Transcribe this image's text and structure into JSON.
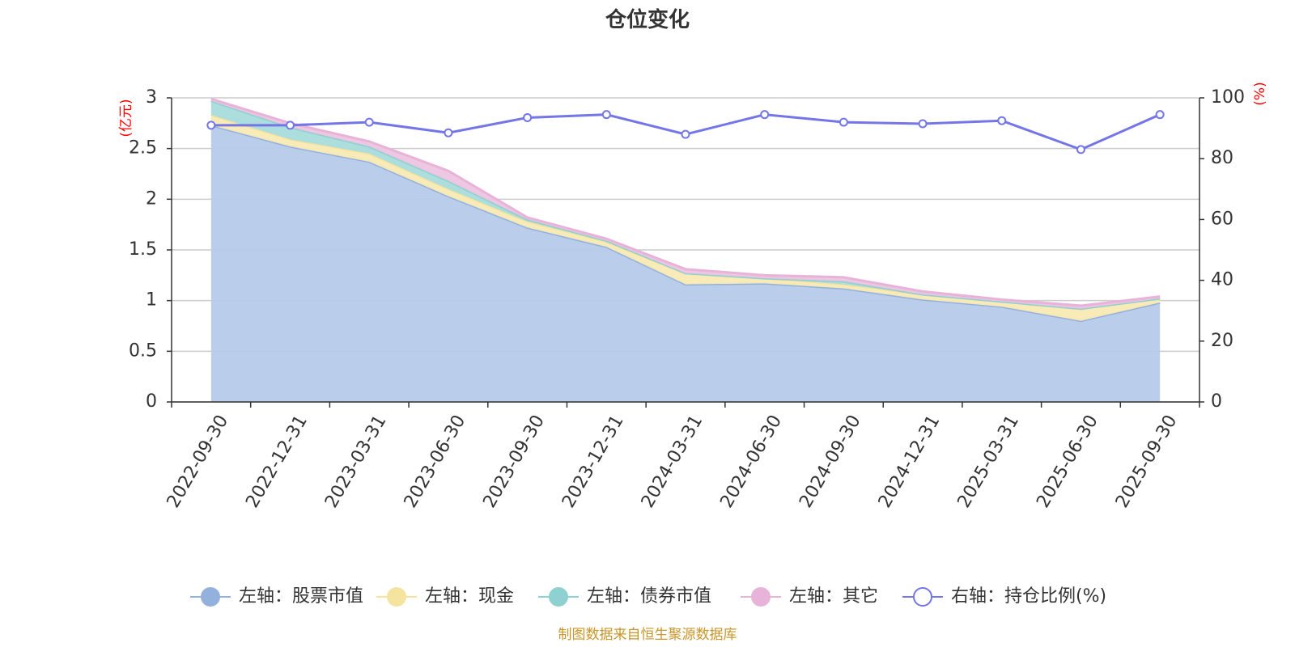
{
  "chart_data": {
    "type": "area",
    "title": "仓位变化",
    "categories": [
      "2022-09-30",
      "2022-12-31",
      "2023-03-31",
      "2023-06-30",
      "2023-09-30",
      "2023-12-31",
      "2024-03-31",
      "2024-06-30",
      "2024-09-30",
      "2024-12-31",
      "2025-03-31",
      "2025-06-30",
      "2025-09-30"
    ],
    "left_axis": {
      "unit": "(亿元)",
      "ylim": [
        0,
        3
      ],
      "ticks": [
        "0",
        "0.5",
        "1",
        "1.5",
        "2",
        "2.5",
        "3"
      ]
    },
    "right_axis": {
      "unit": "(%)",
      "ylim": [
        0,
        100
      ],
      "ticks": [
        "0",
        "20",
        "40",
        "60",
        "80",
        "100"
      ]
    },
    "stacked_series": [
      {
        "name": "左轴：股票市值",
        "color": "#94b1de",
        "fill": "#b6cbea",
        "values": [
          2.73,
          2.52,
          2.37,
          2.03,
          1.72,
          1.53,
          1.16,
          1.17,
          1.12,
          1.01,
          0.94,
          0.8,
          0.98
        ]
      },
      {
        "name": "左轴：现金",
        "color": "#f5e3a0",
        "fill": "#f8eab3",
        "values": [
          0.1,
          0.07,
          0.08,
          0.07,
          0.06,
          0.05,
          0.11,
          0.05,
          0.04,
          0.05,
          0.05,
          0.12,
          0.04
        ]
      },
      {
        "name": "左轴：债券市值",
        "color": "#8fd0d0",
        "fill": "#a9dcdc",
        "values": [
          0.14,
          0.12,
          0.07,
          0.08,
          0.02,
          0.01,
          0.0,
          0.0,
          0.03,
          0.0,
          0.0,
          0.0,
          0.0
        ]
      },
      {
        "name": "左轴：其它",
        "color": "#e8b3d9",
        "fill": "#edc4e0",
        "values": [
          0.02,
          0.04,
          0.05,
          0.1,
          0.02,
          0.02,
          0.04,
          0.03,
          0.04,
          0.03,
          0.02,
          0.03,
          0.02
        ]
      }
    ],
    "line_series": {
      "name": "右轴：持仓比例(%)",
      "color": "#7476e8",
      "values": [
        91,
        91,
        92,
        88.5,
        93.5,
        94.5,
        88,
        94.5,
        92,
        91.5,
        92.5,
        83,
        94.5
      ]
    }
  },
  "source_text": "制图数据来自恒生聚源数据库"
}
